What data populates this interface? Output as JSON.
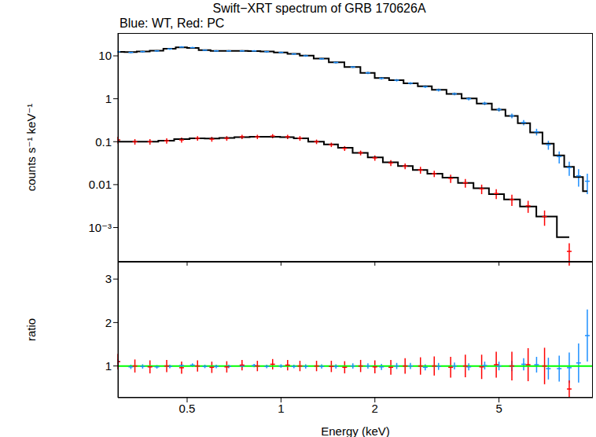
{
  "chart_data": [
    {
      "type": "scatter",
      "title": "Swift−XRT spectrum of GRB 170626A",
      "subtitle": "Blue: WT, Red: PC",
      "y_label": "counts s⁻¹ keV⁻¹",
      "xlim": [
        0.3,
        10
      ],
      "xticks": [
        0.5,
        1,
        2,
        5
      ],
      "ylim": [
        0.00016,
        34
      ],
      "yticks": [
        {
          "value": 0.001,
          "label": "10⁻³"
        },
        0.01,
        0.1,
        1,
        10
      ],
      "log": true,
      "tick_labels": "y",
      "series": [
        {
          "type": "scatter",
          "color": "#1e90ff",
          "marker": "cross",
          "x": [
            0.3,
            0.33,
            0.36,
            0.4,
            0.44,
            0.48,
            0.52,
            0.57,
            0.62,
            0.68,
            0.75,
            0.82,
            0.9,
            1.0,
            1.1,
            1.2,
            1.35,
            1.5,
            1.7,
            1.9,
            2.1,
            2.35,
            2.6,
            2.9,
            3.2,
            3.6,
            4.0,
            4.5,
            5.0,
            5.5,
            6.0,
            6.6,
            7.2,
            7.8,
            8.4,
            9.0,
            9.6
          ],
          "values": [
            12.5,
            12,
            12.5,
            13,
            14.5,
            16,
            15.5,
            13.5,
            13,
            13,
            13,
            13,
            12.5,
            12,
            11,
            10,
            8.5,
            7,
            5.5,
            4.0,
            3.0,
            2.7,
            2.3,
            1.9,
            1.6,
            1.3,
            1.0,
            0.78,
            0.56,
            0.4,
            0.28,
            0.17,
            0.085,
            0.045,
            0.025,
            0.016,
            0.012
          ],
          "yerr": [
            0.6,
            0.6,
            0.6,
            0.6,
            0.7,
            0.7,
            0.7,
            0.6,
            0.6,
            0.6,
            0.6,
            0.6,
            0.6,
            0.5,
            0.5,
            0.5,
            0.4,
            0.35,
            0.3,
            0.25,
            0.2,
            0.18,
            0.15,
            0.13,
            0.12,
            0.1,
            0.08,
            0.07,
            0.06,
            0.05,
            0.04,
            0.03,
            0.02,
            0.014,
            0.009,
            0.007,
            0.006
          ]
        },
        {
          "type": "line",
          "color": "#000000",
          "line_style": "step",
          "x": [
            0.3,
            0.33,
            0.36,
            0.4,
            0.44,
            0.48,
            0.52,
            0.57,
            0.62,
            0.68,
            0.75,
            0.82,
            0.9,
            1.0,
            1.1,
            1.2,
            1.35,
            1.5,
            1.7,
            1.9,
            2.1,
            2.35,
            2.6,
            2.9,
            3.2,
            3.6,
            4.0,
            4.5,
            5.0,
            5.5,
            6.0,
            6.6,
            7.2,
            7.8,
            8.4,
            9.0,
            9.6
          ],
          "values": [
            12.3,
            12.2,
            12.6,
            13.2,
            14.6,
            15.8,
            15.2,
            13.6,
            13.1,
            13.1,
            13.0,
            12.9,
            12.6,
            12.0,
            11.1,
            10.1,
            8.6,
            7.1,
            5.5,
            4.0,
            3.05,
            2.7,
            2.3,
            1.95,
            1.62,
            1.3,
            1.02,
            0.77,
            0.56,
            0.4,
            0.27,
            0.165,
            0.09,
            0.048,
            0.026,
            0.015,
            0.007
          ]
        },
        {
          "type": "scatter",
          "color": "#ff0000",
          "marker": "cross",
          "x": [
            0.3,
            0.34,
            0.38,
            0.43,
            0.48,
            0.54,
            0.6,
            0.67,
            0.75,
            0.84,
            0.94,
            1.05,
            1.15,
            1.3,
            1.45,
            1.6,
            1.8,
            2.0,
            2.25,
            2.5,
            2.8,
            3.1,
            3.5,
            3.9,
            4.4,
            4.9,
            5.5,
            6.2,
            7.0,
            8.4
          ],
          "values": [
            0.11,
            0.1,
            0.1,
            0.105,
            0.11,
            0.12,
            0.115,
            0.12,
            0.13,
            0.13,
            0.135,
            0.13,
            0.12,
            0.1,
            0.085,
            0.07,
            0.055,
            0.042,
            0.032,
            0.027,
            0.022,
            0.018,
            0.014,
            0.011,
            0.008,
            0.0062,
            0.0045,
            0.0032,
            0.0018,
            0.00028
          ],
          "yerr": [
            0.02,
            0.015,
            0.015,
            0.015,
            0.015,
            0.015,
            0.015,
            0.015,
            0.015,
            0.015,
            0.015,
            0.015,
            0.015,
            0.012,
            0.01,
            0.009,
            0.007,
            0.006,
            0.005,
            0.004,
            0.004,
            0.003,
            0.003,
            0.0025,
            0.002,
            0.0016,
            0.0013,
            0.001,
            0.0007,
            0.00015
          ]
        },
        {
          "type": "line",
          "color": "#000000",
          "line_style": "step",
          "x": [
            0.3,
            0.34,
            0.38,
            0.43,
            0.48,
            0.54,
            0.6,
            0.67,
            0.75,
            0.84,
            0.94,
            1.05,
            1.15,
            1.3,
            1.45,
            1.6,
            1.8,
            2.0,
            2.25,
            2.5,
            2.8,
            3.1,
            3.5,
            3.9,
            4.4,
            4.9,
            5.5,
            6.2,
            7.0,
            8.4
          ],
          "values": [
            0.1,
            0.1,
            0.1,
            0.105,
            0.115,
            0.12,
            0.118,
            0.122,
            0.128,
            0.13,
            0.13,
            0.128,
            0.12,
            0.1,
            0.086,
            0.072,
            0.055,
            0.043,
            0.033,
            0.027,
            0.022,
            0.018,
            0.0145,
            0.011,
            0.0082,
            0.006,
            0.0045,
            0.0031,
            0.0018,
            0.0006
          ]
        }
      ]
    },
    {
      "type": "scatter",
      "x_label": "Energy (keV)",
      "y_label": "ratio",
      "xlim": [
        0.3,
        10
      ],
      "xticks": [
        0.5,
        1,
        2,
        5
      ],
      "ylim": [
        0.27,
        3.4
      ],
      "yticks": [
        1,
        2,
        3
      ],
      "log": "x",
      "reference_line": {
        "value": 1,
        "color": "#00ff00"
      },
      "series": [
        {
          "type": "scatter",
          "color": "#1e90ff",
          "marker": "cross",
          "x": [
            0.3,
            0.33,
            0.36,
            0.4,
            0.44,
            0.48,
            0.52,
            0.57,
            0.62,
            0.68,
            0.75,
            0.82,
            0.9,
            1.0,
            1.1,
            1.2,
            1.35,
            1.5,
            1.7,
            1.9,
            2.1,
            2.35,
            2.6,
            2.9,
            3.2,
            3.6,
            4.0,
            4.5,
            5.0,
            5.5,
            6.0,
            6.6,
            7.2,
            7.8,
            8.4,
            9.0,
            9.6
          ],
          "values": [
            1.1,
            0.98,
            0.99,
            0.98,
            0.99,
            1.01,
            1.02,
            0.99,
            0.99,
            0.99,
            1.0,
            1.01,
            0.99,
            1.0,
            0.99,
            0.99,
            0.99,
            0.99,
            1.0,
            1.0,
            0.98,
            1.0,
            1.0,
            0.97,
            0.99,
            1.0,
            0.98,
            1.01,
            1.0,
            1.0,
            1.04,
            1.03,
            0.94,
            0.94,
            0.96,
            1.07,
            1.7
          ],
          "yerr": [
            0.06,
            0.05,
            0.05,
            0.04,
            0.04,
            0.04,
            0.04,
            0.04,
            0.04,
            0.04,
            0.04,
            0.04,
            0.04,
            0.04,
            0.04,
            0.05,
            0.05,
            0.05,
            0.06,
            0.06,
            0.07,
            0.07,
            0.07,
            0.07,
            0.08,
            0.08,
            0.08,
            0.09,
            0.1,
            0.12,
            0.14,
            0.18,
            0.25,
            0.3,
            0.35,
            0.45,
            0.6
          ]
        },
        {
          "type": "scatter",
          "color": "#ff0000",
          "marker": "cross",
          "x": [
            0.3,
            0.34,
            0.38,
            0.43,
            0.48,
            0.54,
            0.6,
            0.67,
            0.75,
            0.84,
            0.94,
            1.05,
            1.15,
            1.3,
            1.45,
            1.6,
            1.8,
            2.0,
            2.25,
            2.5,
            2.8,
            3.1,
            3.5,
            3.9,
            4.4,
            4.9,
            5.5,
            6.2,
            7.0,
            8.4
          ],
          "values": [
            1.1,
            1.0,
            0.98,
            1.0,
            0.96,
            1.0,
            0.97,
            0.98,
            1.02,
            1.0,
            1.04,
            1.02,
            1.0,
            1.0,
            0.99,
            0.97,
            1.0,
            0.98,
            0.97,
            1.0,
            1.0,
            1.0,
            0.97,
            1.0,
            0.98,
            1.03,
            1.0,
            1.03,
            1.0,
            0.47
          ],
          "yerr": [
            0.18,
            0.15,
            0.15,
            0.14,
            0.14,
            0.13,
            0.13,
            0.13,
            0.12,
            0.12,
            0.12,
            0.12,
            0.12,
            0.12,
            0.13,
            0.14,
            0.14,
            0.15,
            0.17,
            0.18,
            0.2,
            0.22,
            0.24,
            0.26,
            0.28,
            0.3,
            0.33,
            0.38,
            0.42,
            0.2
          ]
        }
      ]
    }
  ]
}
